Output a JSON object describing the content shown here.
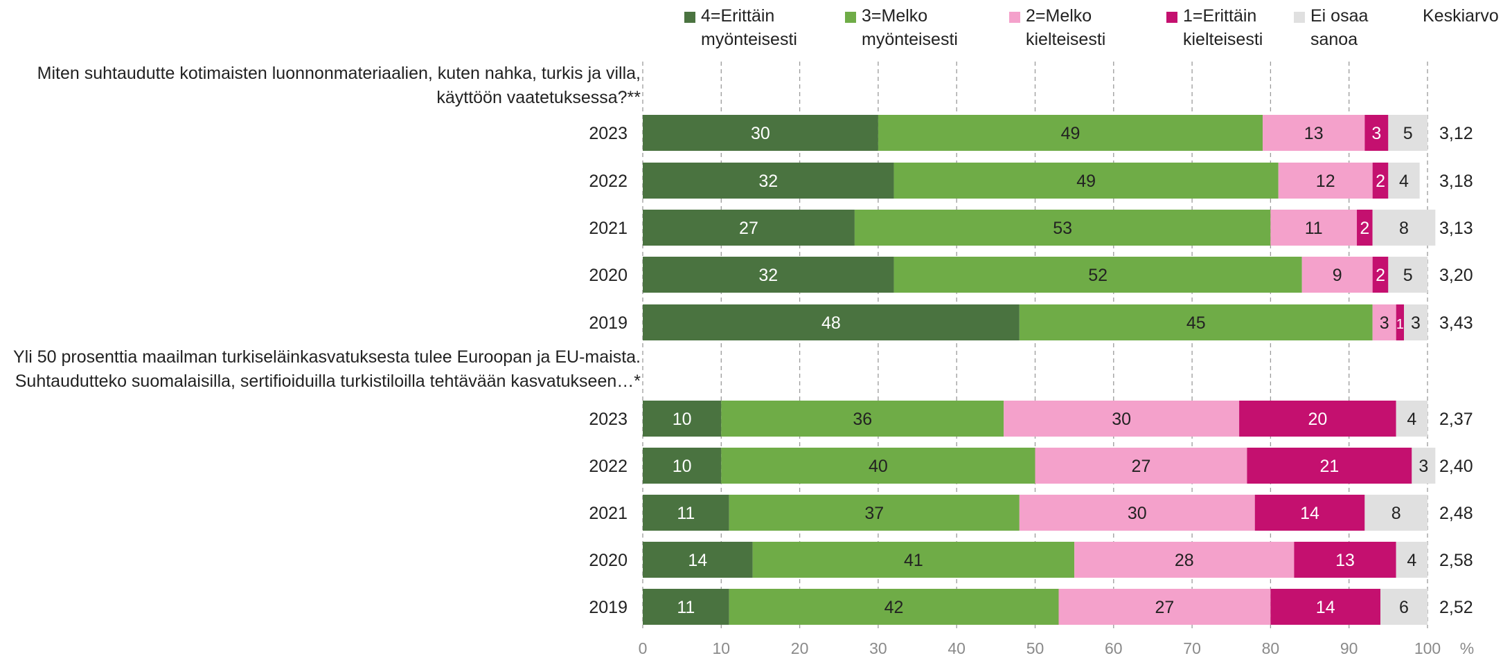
{
  "legend": [
    {
      "label": "4=Erittäin\nmyönteisesti",
      "color": "#4a7340"
    },
    {
      "label": "3=Melko\nmyönteisesti",
      "color": "#6fac47"
    },
    {
      "label": "2=Melko\nkielteisesti",
      "color": "#f4a1cb"
    },
    {
      "label": "1=Erittäin\nkielteisesti",
      "color": "#c4106f"
    },
    {
      "label": "Ei osaa\nsanoa",
      "color": "#e0e0e0"
    }
  ],
  "avg_header": "Keskiarvo",
  "chart_data": {
    "type": "bar",
    "orientation": "horizontal",
    "stacked": true,
    "xlim": [
      0,
      100
    ],
    "xticks": [
      "0",
      "10",
      "20",
      "30",
      "40",
      "50",
      "60",
      "70",
      "80",
      "90",
      "100"
    ],
    "xunit": "%",
    "grid": true,
    "legend_position": "top",
    "groups": [
      {
        "title": "Miten suhtaudutte kotimaisten luonnonmateriaalien, kuten nahka, turkis ja villa,\nkäyttöön vaatetuksessa?**",
        "rows": [
          {
            "year": "2023",
            "values": [
              30,
              49,
              13,
              3,
              5
            ],
            "labels": [
              "30",
              "49",
              "13",
              "3",
              "5"
            ],
            "mean": "3,12"
          },
          {
            "year": "2022",
            "values": [
              32,
              49,
              12,
              2,
              4
            ],
            "labels": [
              "32",
              "49",
              "12",
              "2",
              "4"
            ],
            "mean": "3,18"
          },
          {
            "year": "2021",
            "values": [
              27,
              53,
              11,
              2,
              8
            ],
            "labels": [
              "27",
              "53",
              "11",
              "2",
              "8"
            ],
            "mean": "3,13"
          },
          {
            "year": "2020",
            "values": [
              32,
              52,
              9,
              2,
              5
            ],
            "labels": [
              "32",
              "52",
              "9",
              "2",
              "5"
            ],
            "mean": "3,20"
          },
          {
            "year": "2019",
            "values": [
              48,
              45,
              3,
              1,
              3
            ],
            "labels": [
              "48",
              "45",
              "3",
              "1",
              "3"
            ],
            "mean": "3,43"
          }
        ]
      },
      {
        "title": "Yli 50 prosenttia maailman turkiseläinkasvatuksesta tulee Euroopan ja EU-maista.\nSuhtaudutteko suomalaisilla, sertifioiduilla turkistiloilla tehtävään kasvatukseen…*",
        "rows": [
          {
            "year": "2023",
            "values": [
              10,
              36,
              30,
              20,
              4
            ],
            "labels": [
              "10",
              "36",
              "30",
              "20",
              "4"
            ],
            "mean": "2,37"
          },
          {
            "year": "2022",
            "values": [
              10,
              40,
              27,
              21,
              3
            ],
            "labels": [
              "10",
              "40",
              "27",
              "21",
              "3"
            ],
            "mean": "2,40"
          },
          {
            "year": "2021",
            "values": [
              11,
              37,
              30,
              14,
              8
            ],
            "labels": [
              "11",
              "37",
              "30",
              "14",
              "8"
            ],
            "mean": "2,48"
          },
          {
            "year": "2020",
            "values": [
              14,
              41,
              28,
              13,
              4
            ],
            "labels": [
              "14",
              "41",
              "28",
              "13",
              "4"
            ],
            "mean": "2,58"
          },
          {
            "year": "2019",
            "values": [
              11,
              42,
              27,
              14,
              6
            ],
            "labels": [
              "11",
              "42",
              "27",
              "14",
              "6"
            ],
            "mean": "2,52"
          }
        ]
      }
    ]
  }
}
